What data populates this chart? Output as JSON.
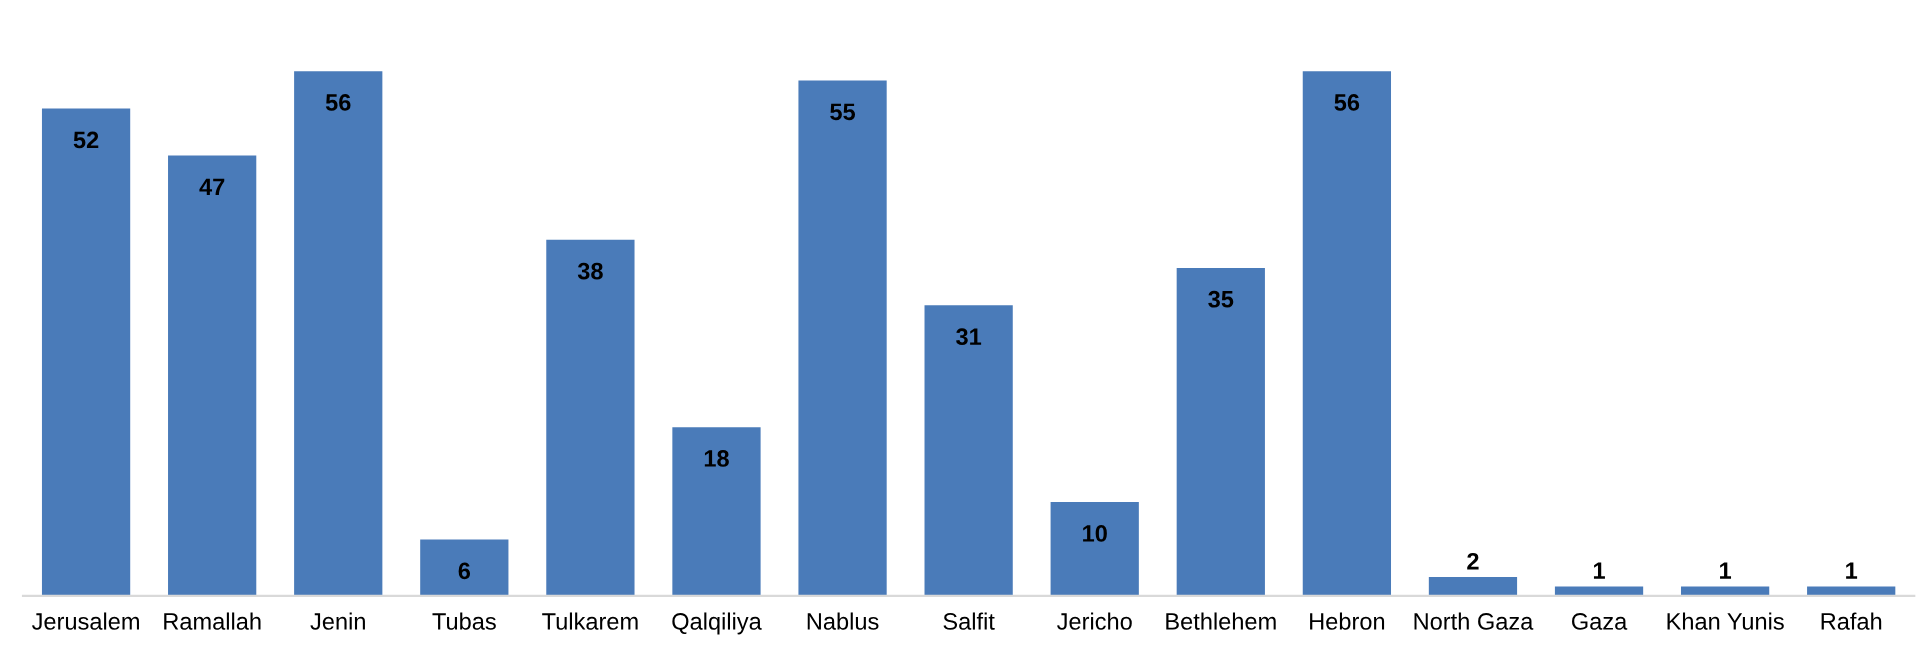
{
  "chart_data": {
    "type": "bar",
    "categories": [
      "Jerusalem",
      "Ramallah",
      "Jenin",
      "Tubas",
      "Tulkarem",
      "Qalqiliya",
      "Nablus",
      "Salfit",
      "Jericho",
      "Bethlehem",
      "Hebron",
      "North Gaza",
      "Gaza",
      "Khan Yunis",
      "Rafah"
    ],
    "values": [
      52,
      47,
      56,
      6,
      38,
      18,
      55,
      31,
      10,
      35,
      56,
      2,
      1,
      1,
      1
    ],
    "color": "#4a7bb9",
    "data_labels": true,
    "grid": false,
    "legend": false
  }
}
